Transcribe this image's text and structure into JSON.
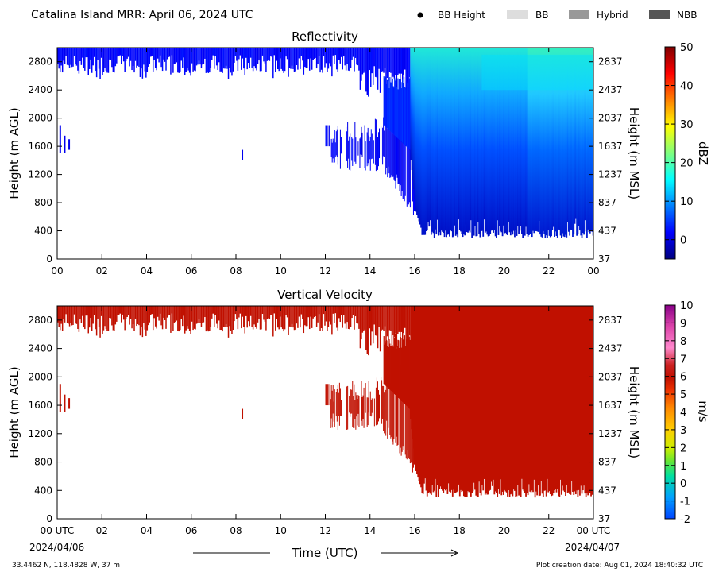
{
  "header": {
    "title": "Catalina Island MRR:  April 06, 2024 UTC",
    "legend": [
      {
        "label": "BB Height",
        "marker": "dot",
        "color": "#000000"
      },
      {
        "label": "BB",
        "marker": "box",
        "color": "#dddddd"
      },
      {
        "label": "Hybrid",
        "marker": "box",
        "color": "#999999"
      },
      {
        "label": "NBB",
        "marker": "box",
        "color": "#555555"
      }
    ]
  },
  "footer": {
    "location": "33.4462 N, 118.4828 W, 37 m",
    "creation": "Plot creation date: Aug 01, 2024 18:40:32 UTC",
    "xlabel": "Time (UTC)",
    "start_date": "2024/04/06",
    "end_date": "2024/04/07"
  },
  "chart_data": [
    {
      "type": "heatmap",
      "title": "Reflectivity",
      "ylabel": "Height (m AGL)",
      "ylabel_right": "Height (m MSL)",
      "xlim": [
        0,
        24
      ],
      "x_ticks": [
        "00",
        "02",
        "04",
        "06",
        "08",
        "10",
        "12",
        "14",
        "16",
        "18",
        "20",
        "22",
        "00"
      ],
      "ylim": [
        0,
        3000
      ],
      "y_ticks": [
        0,
        400,
        800,
        1200,
        1600,
        2000,
        2400,
        2800
      ],
      "y_ticks_right": [
        37,
        437,
        837,
        1237,
        1637,
        2037,
        2437,
        2837
      ],
      "colorbar": {
        "label": "dBZ",
        "range": [
          -5,
          50
        ],
        "ticks": [
          0,
          10,
          20,
          30,
          40,
          50
        ],
        "colormap": "jet"
      },
      "description_values": {
        "top_layer": {
          "x": [
            0,
            15.8
          ],
          "y": [
            2600,
            3000
          ],
          "value": 2
        },
        "lower_echoes": {
          "x": [
            12,
            16
          ],
          "y": [
            1300,
            1900
          ],
          "value": 0
        },
        "rain_region": {
          "x": [
            15.8,
            24
          ],
          "y": [
            300,
            3000
          ],
          "value_range": [
            -1,
            15
          ]
        },
        "brightest_band": {
          "x": [
            19,
            24
          ],
          "y": [
            2400,
            2900
          ],
          "value": 14
        }
      }
    },
    {
      "type": "heatmap",
      "title": "Vertical Velocity",
      "ylabel": "Height (m AGL)",
      "ylabel_right": "Height (m MSL)",
      "xlim": [
        0,
        24
      ],
      "x_ticks": [
        "00 UTC",
        "02",
        "04",
        "06",
        "08",
        "10",
        "12",
        "14",
        "16",
        "18",
        "20",
        "22",
        "00 UTC"
      ],
      "ylim": [
        0,
        3000
      ],
      "y_ticks": [
        0,
        400,
        800,
        1200,
        1600,
        2000,
        2400,
        2800
      ],
      "y_ticks_right": [
        37,
        437,
        837,
        1237,
        1637,
        2037,
        2437,
        2837
      ],
      "colorbar": {
        "label": "m/s",
        "range": [
          -2,
          10
        ],
        "ticks": [
          -2,
          -1,
          0,
          1,
          2,
          3,
          4,
          5,
          6,
          7,
          8,
          9,
          10
        ]
      },
      "description_values": {
        "all_echo_value": 6
      }
    }
  ]
}
